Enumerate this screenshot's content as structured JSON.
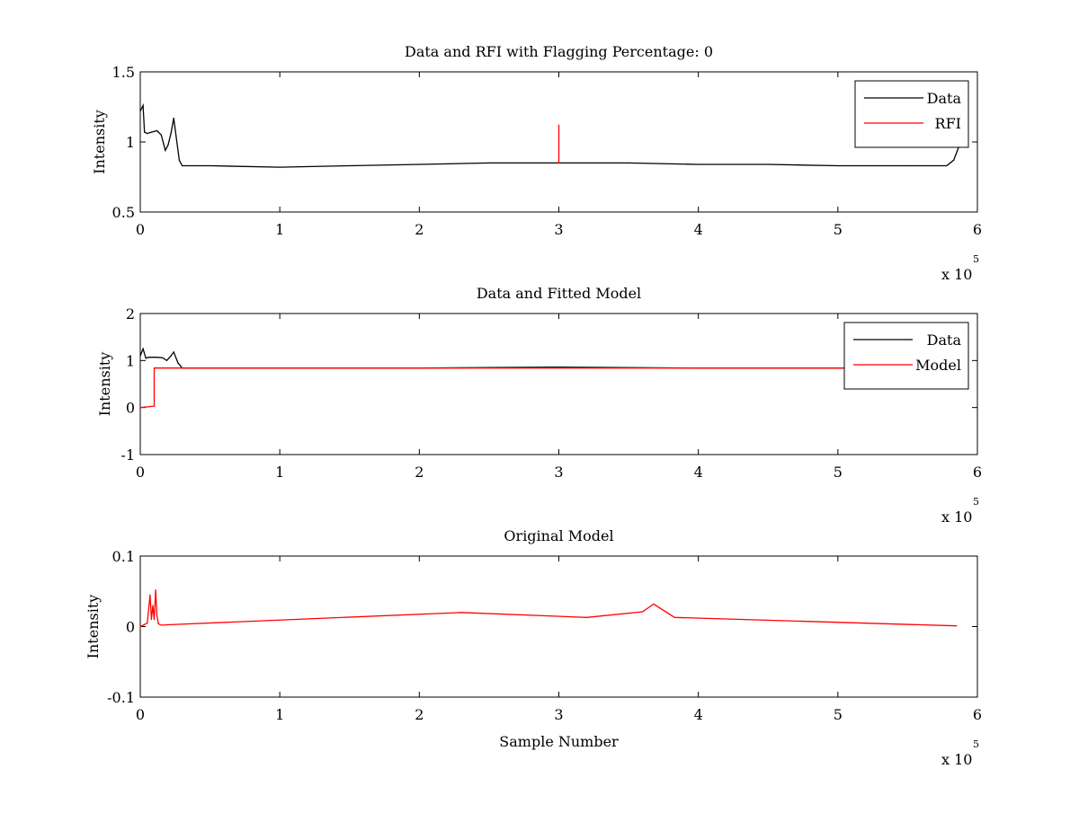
{
  "chart_data": [
    {
      "type": "line",
      "title": "Data and RFI with Flagging Percentage: 0",
      "xlabel": "",
      "ylabel": "Intensity",
      "xlim": [
        0,
        600000
      ],
      "ylim": [
        0.5,
        1.5
      ],
      "xticks": [
        0,
        1,
        2,
        3,
        4,
        5,
        6
      ],
      "yticks": [
        "0.5",
        "1",
        "1.5"
      ],
      "x_multiplier": {
        "base": "x 10",
        "exponent": "5"
      },
      "legend": {
        "position": "top-right",
        "entries": [
          "Data",
          "RFI"
        ]
      },
      "colors": {
        "Data": "#000000",
        "RFI": "#ff0000"
      },
      "series": [
        {
          "name": "Data",
          "x": [
            0,
            2000,
            3000,
            5000,
            8000,
            12000,
            15000,
            18000,
            20000,
            22000,
            24000,
            26000,
            28000,
            30000,
            50000,
            100000,
            150000,
            200000,
            250000,
            300000,
            350000,
            400000,
            450000,
            500000,
            550000,
            578000,
            583000,
            588000
          ],
          "y": [
            1.22,
            1.26,
            1.07,
            1.06,
            1.07,
            1.08,
            1.05,
            0.94,
            0.98,
            1.06,
            1.17,
            1.02,
            0.87,
            0.83,
            0.83,
            0.82,
            0.83,
            0.84,
            0.85,
            0.85,
            0.85,
            0.84,
            0.84,
            0.83,
            0.83,
            0.83,
            0.87,
            1.0
          ]
        },
        {
          "name": "RFI",
          "x": [
            300000,
            300000
          ],
          "y": [
            0.85,
            1.12
          ]
        }
      ]
    },
    {
      "type": "line",
      "title": "Data and Fitted Model",
      "xlabel": "",
      "ylabel": "Intensity",
      "xlim": [
        0,
        600000
      ],
      "ylim": [
        -1,
        2
      ],
      "xticks": [
        0,
        1,
        2,
        3,
        4,
        5,
        6
      ],
      "yticks": [
        "-1",
        "0",
        "1",
        "2"
      ],
      "x_multiplier": {
        "base": "x 10",
        "exponent": "5"
      },
      "legend": {
        "position": "top-right",
        "entries": [
          "Data",
          "Model"
        ]
      },
      "colors": {
        "Data": "#000000",
        "Model": "#ff0000"
      },
      "series": [
        {
          "name": "Data",
          "x": [
            0,
            2000,
            4000,
            6000,
            12000,
            16000,
            19000,
            22000,
            24000,
            27000,
            30000,
            100000,
            200000,
            300000,
            400000,
            500000,
            585000
          ],
          "y": [
            1.1,
            1.25,
            1.05,
            1.07,
            1.07,
            1.06,
            1.0,
            1.1,
            1.18,
            0.95,
            0.84,
            0.84,
            0.84,
            0.86,
            0.84,
            0.84,
            0.85
          ]
        },
        {
          "name": "Model",
          "x": [
            0,
            10000,
            10000,
            585000
          ],
          "y": [
            0.0,
            0.03,
            0.84,
            0.84
          ]
        }
      ]
    },
    {
      "type": "line",
      "title": "Original Model",
      "xlabel": "Sample Number",
      "ylabel": "Intensity",
      "xlim": [
        0,
        600000
      ],
      "ylim": [
        -0.1,
        0.1
      ],
      "xticks": [
        0,
        1,
        2,
        3,
        4,
        5,
        6
      ],
      "yticks": [
        "-0.1",
        "0",
        "0.1"
      ],
      "x_multiplier": {
        "base": "x 10",
        "exponent": "5"
      },
      "legend": null,
      "colors": {
        "Model": "#ff0000"
      },
      "series": [
        {
          "name": "",
          "x": [
            0,
            5000,
            7000,
            8000,
            9000,
            10000,
            11000,
            12000,
            13000,
            15000,
            25000,
            230000,
            320000,
            360000,
            368000,
            383000,
            585000
          ],
          "y": [
            0.0,
            0.005,
            0.045,
            0.01,
            0.03,
            0.01,
            0.052,
            0.015,
            0.004,
            0.002,
            0.003,
            0.02,
            0.013,
            0.021,
            0.032,
            0.013,
            0.001
          ]
        }
      ]
    }
  ]
}
